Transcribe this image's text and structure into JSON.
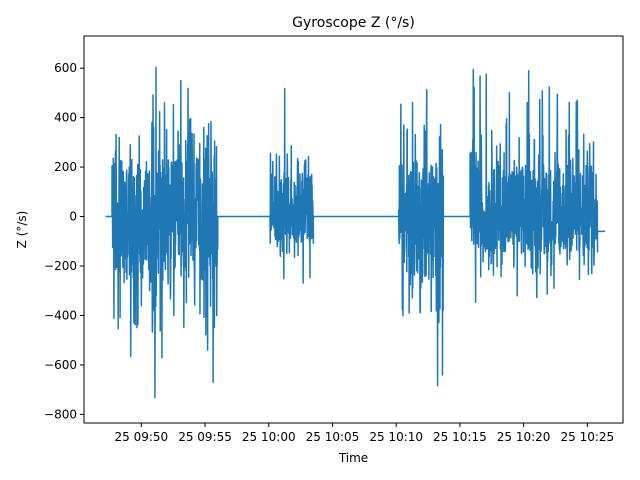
{
  "chart_data": {
    "type": "line",
    "title": "Gyroscope Z (°/s)",
    "xlabel": "Time",
    "ylabel": "Z (°/s)",
    "xticks": [
      "25 09:50",
      "25 09:55",
      "25 10:00",
      "25 10:05",
      "25 10:10",
      "25 10:15",
      "25 10:20",
      "25 10:25"
    ],
    "xtick_minutes": [
      0,
      5,
      10,
      15,
      20,
      25,
      30,
      35
    ],
    "xlim_minutes": [
      -4.5,
      37.8
    ],
    "yticks": [
      600,
      400,
      200,
      0,
      -200,
      -400,
      -600,
      -800
    ],
    "ylim": [
      -835,
      730
    ],
    "grid": false,
    "color": "#1f77b4",
    "segments": [
      {
        "start": -2.8,
        "end": -2.3,
        "value": 0
      },
      {
        "start": -2.3,
        "end": 6.0,
        "min": -760,
        "max": 660
      },
      {
        "start": 6.0,
        "end": 10.1,
        "value": 0
      },
      {
        "start": 10.1,
        "end": 13.5,
        "min": -280,
        "max": 520
      },
      {
        "start": 13.5,
        "end": 20.2,
        "value": 0
      },
      {
        "start": 20.2,
        "end": 23.7,
        "min": -690,
        "max": 640
      },
      {
        "start": 23.7,
        "end": 25.8,
        "value": 0
      },
      {
        "start": 25.8,
        "end": 35.8,
        "min": -410,
        "max": 600
      },
      {
        "start": 35.8,
        "end": 36.4,
        "value": -60
      }
    ]
  }
}
